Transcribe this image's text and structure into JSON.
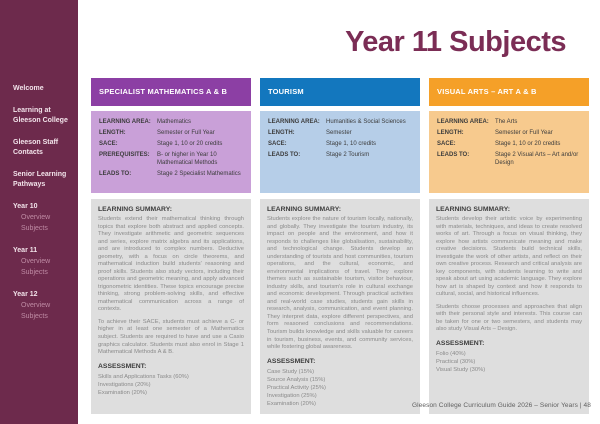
{
  "page": {
    "title": "Year 11 Subjects",
    "footer": "Gleeson College Curriculum Guide 2026 – Senior Years   |   48"
  },
  "colors": {
    "sidebar_bg": "#6d2a4c",
    "title": "#7b2d55",
    "math_header": "#8c3fa4",
    "math_info_bg": "#c9a0d8",
    "tourism_header": "#1377be",
    "tourism_info_bg": "#b6cee8",
    "art_header": "#f5a028",
    "art_info_bg": "#f7ca8e",
    "summary_bg": "#dedede"
  },
  "sidebar": {
    "items": [
      {
        "label": "Welcome"
      },
      {
        "label": "Learning at Gleeson College"
      },
      {
        "label": "Gleeson Staff Contacts"
      },
      {
        "label": "Senior Learning Pathways"
      }
    ],
    "years": [
      {
        "label": "Year 10",
        "children": [
          {
            "label": "Overview"
          },
          {
            "label": "Subjects"
          }
        ]
      },
      {
        "label": "Year 11",
        "children": [
          {
            "label": "Overview"
          },
          {
            "label": "Subjects"
          }
        ]
      },
      {
        "label": "Year 12",
        "children": [
          {
            "label": "Overview"
          },
          {
            "label": "Subjects"
          }
        ]
      }
    ]
  },
  "cards": [
    {
      "title": "SPECIALIST MATHEMATICS A & B",
      "info": [
        {
          "label": "LEARNING AREA:",
          "value": "Mathematics"
        },
        {
          "label": "LENGTH:",
          "value": "Semester or Full Year"
        },
        {
          "label": "SACE:",
          "value": "Stage 1, 10 or 20 credits"
        },
        {
          "label": "PREREQUISITES:",
          "value": "B- or higher in Year 10 Mathematical Methods"
        },
        {
          "label": "LEADS TO:",
          "value": "Stage 2 Specialist Mathematics"
        }
      ],
      "summary_heading": "LEARNING SUMMARY:",
      "paragraphs": [
        "Students extend their mathematical thinking through topics that explore both abstract and applied concepts. They investigate arithmetic and geometric sequences and series, explore matrix algebra and its applications, and are introduced to complex numbers. Deductive geometry, with a focus on circle theorems, and mathematical induction build students' reasoning and proof skills. Students also study vectors, including their operations and geometric meaning, and apply advanced trigonometric identities. These topics encourage precise thinking, strong problem-solving skills, and effective mathematical communication across a range of contexts.",
        "To achieve their SACE, students must achieve a C- or higher in at least one semester of a Mathematics subject. Students are required to have and use a Casio graphics calculator. Students must also enrol in Stage 1 Mathematical Methods A & B."
      ],
      "assessment_heading": "ASSESSMENT:",
      "assessment": [
        "Skills and Applications Tasks (60%)",
        "Investigations (20%)",
        "Examination (20%)"
      ]
    },
    {
      "title": "TOURISM",
      "info": [
        {
          "label": "LEARNING AREA:",
          "value": "Humanities & Social Sciences"
        },
        {
          "label": "LENGTH:",
          "value": "Semester"
        },
        {
          "label": "SACE:",
          "value": "Stage 1, 10 credits"
        },
        {
          "label": "LEADS TO:",
          "value": "Stage 2 Tourism"
        }
      ],
      "summary_heading": "LEARNING SUMMARY:",
      "paragraphs": [
        "Students explore the nature of tourism locally, nationally, and globally. They investigate the tourism industry, its impact on people and the environment, and how it responds to challenges like globalisation, sustainability, and technological change. Students develop an understanding of tourists and host communities, tourism operations, and the cultural, economic, and environmental implications of travel. They explore themes such as sustainable tourism, visitor behaviour, industry skills, and tourism's role in cultural exchange and economic development. Through practical activities and real-world case studies, students gain skills in research, analysis, communication, and event planning. They interpret data, explore different perspectives, and form reasoned conclusions and recommendations. Tourism builds knowledge and skills valuable for careers in tourism, business, events, and community services, while fostering global awareness."
      ],
      "assessment_heading": "ASSESSMENT:",
      "assessment": [
        "Case Study (15%)",
        "Source Analysis (15%)",
        "Practical Activity (25%)",
        "Investigation (25%)",
        "Examination (20%)"
      ]
    },
    {
      "title": "VISUAL ARTS – ART A & B",
      "info": [
        {
          "label": "LEARNING AREA:",
          "value": "The Arts"
        },
        {
          "label": "LENGTH:",
          "value": "Semester or Full Year"
        },
        {
          "label": "SACE:",
          "value": "Stage 1, 10 or 20 credits"
        },
        {
          "label": "LEADS TO:",
          "value": "Stage 2 Visual Arts – Art and/or Design"
        }
      ],
      "summary_heading": "LEARNING SUMMARY:",
      "paragraphs": [
        "Students develop their artistic voice by experimenting with materials, techniques, and ideas to create resolved works of art. Through a focus on visual thinking, they explore how artists communicate meaning and make creative decisions. Students build technical skills, investigate the work of other artists, and reflect on their own creative process. Research and critical analysis are key components, with students learning to write and speak about art using academic language. They explore how art is shaped by context and how it responds to cultural, social, and historical influences.",
        "Students choose processes and approaches that align with their personal style and interests. This course can be taken for one or two semesters, and students may also study Visual Arts – Design."
      ],
      "assessment_heading": "ASSESSMENT:",
      "assessment": [
        "Folio (40%)",
        "Practical (30%)",
        "Visual Study (30%)"
      ]
    }
  ]
}
